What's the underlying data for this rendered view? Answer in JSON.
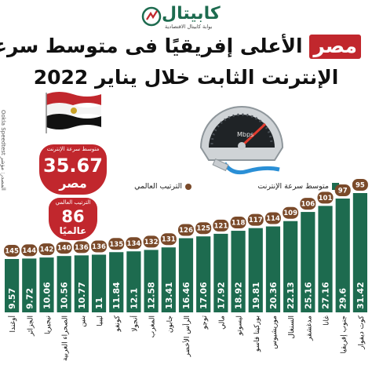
{
  "logo": {
    "text": "كابيتال",
    "subtitle": "بوابة كابيتال الاقتصادية"
  },
  "title": {
    "highlight": "مصر",
    "line1_rest": "الأعلى إفريقيًا فى متوسط سرعة",
    "line2": "الإنترنت الثابت خلال يناير 2022"
  },
  "source": "المصدر: مؤشر Ookla Speedtest",
  "egypt": {
    "speed_label": "متوسط سرعة الإنترنت",
    "speed_value": "35.67",
    "country": "مصر",
    "rank_label": "الترتيب العالمي",
    "rank_value": "86",
    "rank_sub": "عالميًا"
  },
  "gauge_label": "Mbps",
  "legend": {
    "speed": "متوسط سرعة الإنترنت",
    "rank": "الترتيب العالمي"
  },
  "colors": {
    "bar": "#1d6b4f",
    "rank_badge": "#7a4a2a",
    "accent": "#c1272d"
  },
  "chart_data": {
    "type": "bar",
    "orientation": "vertical",
    "categories": [
      "كوت ديفوار",
      "جنوب إفريقيا",
      "غانا",
      "مدغشقر",
      "السنغال",
      "موريشيوس",
      "بوركينا فاسو",
      "ليسوتو",
      "مالي",
      "توجو",
      "الرأس الأخضر",
      "جابون",
      "المغرب",
      "أنجولا",
      "كونغو",
      "ليبيا",
      "بنين",
      "الصحراء الغربية",
      "نيجيريا",
      "الجزائر",
      "أوغندا"
    ],
    "series": [
      {
        "name": "متوسط سرعة الإنترنت",
        "values": [
          31.42,
          29.6,
          27.16,
          25.16,
          22.13,
          20.36,
          19.81,
          18.92,
          17.92,
          17.06,
          16.46,
          13.41,
          12.58,
          12.1,
          11.84,
          11,
          10.77,
          10.56,
          10.06,
          9.72,
          9.57
        ]
      },
      {
        "name": "الترتيب العالمي",
        "values": [
          95,
          97,
          101,
          106,
          109,
          114,
          117,
          118,
          121,
          125,
          126,
          131,
          132,
          134,
          135,
          136,
          136,
          140,
          142,
          144,
          145
        ]
      }
    ],
    "ylim": [
      0,
      32
    ]
  }
}
